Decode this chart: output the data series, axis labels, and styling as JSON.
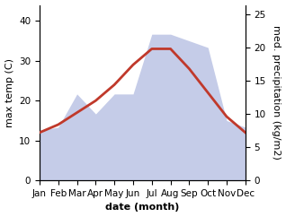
{
  "months": [
    "Jan",
    "Feb",
    "Mar",
    "Apr",
    "May",
    "Jun",
    "Jul",
    "Aug",
    "Sep",
    "Oct",
    "Nov",
    "Dec"
  ],
  "max_temp": [
    12,
    14,
    17,
    20,
    24,
    29,
    33,
    33,
    28,
    22,
    16,
    12
  ],
  "precipitation": [
    7.5,
    8,
    13,
    10,
    13,
    13,
    22,
    22,
    21,
    20,
    9,
    8
  ],
  "temp_color": "#c0392b",
  "precip_fill_color": "#c5cce8",
  "temp_ylim": [
    0,
    44
  ],
  "precip_ylim": [
    0,
    26.4
  ],
  "temp_yticks": [
    0,
    10,
    20,
    30,
    40
  ],
  "precip_yticks": [
    0,
    5,
    10,
    15,
    20,
    25
  ],
  "xlabel": "date (month)",
  "ylabel_left": "max temp (C)",
  "ylabel_right": "med. precipitation (kg/m2)",
  "label_fontsize": 8,
  "tick_fontsize": 7.5
}
